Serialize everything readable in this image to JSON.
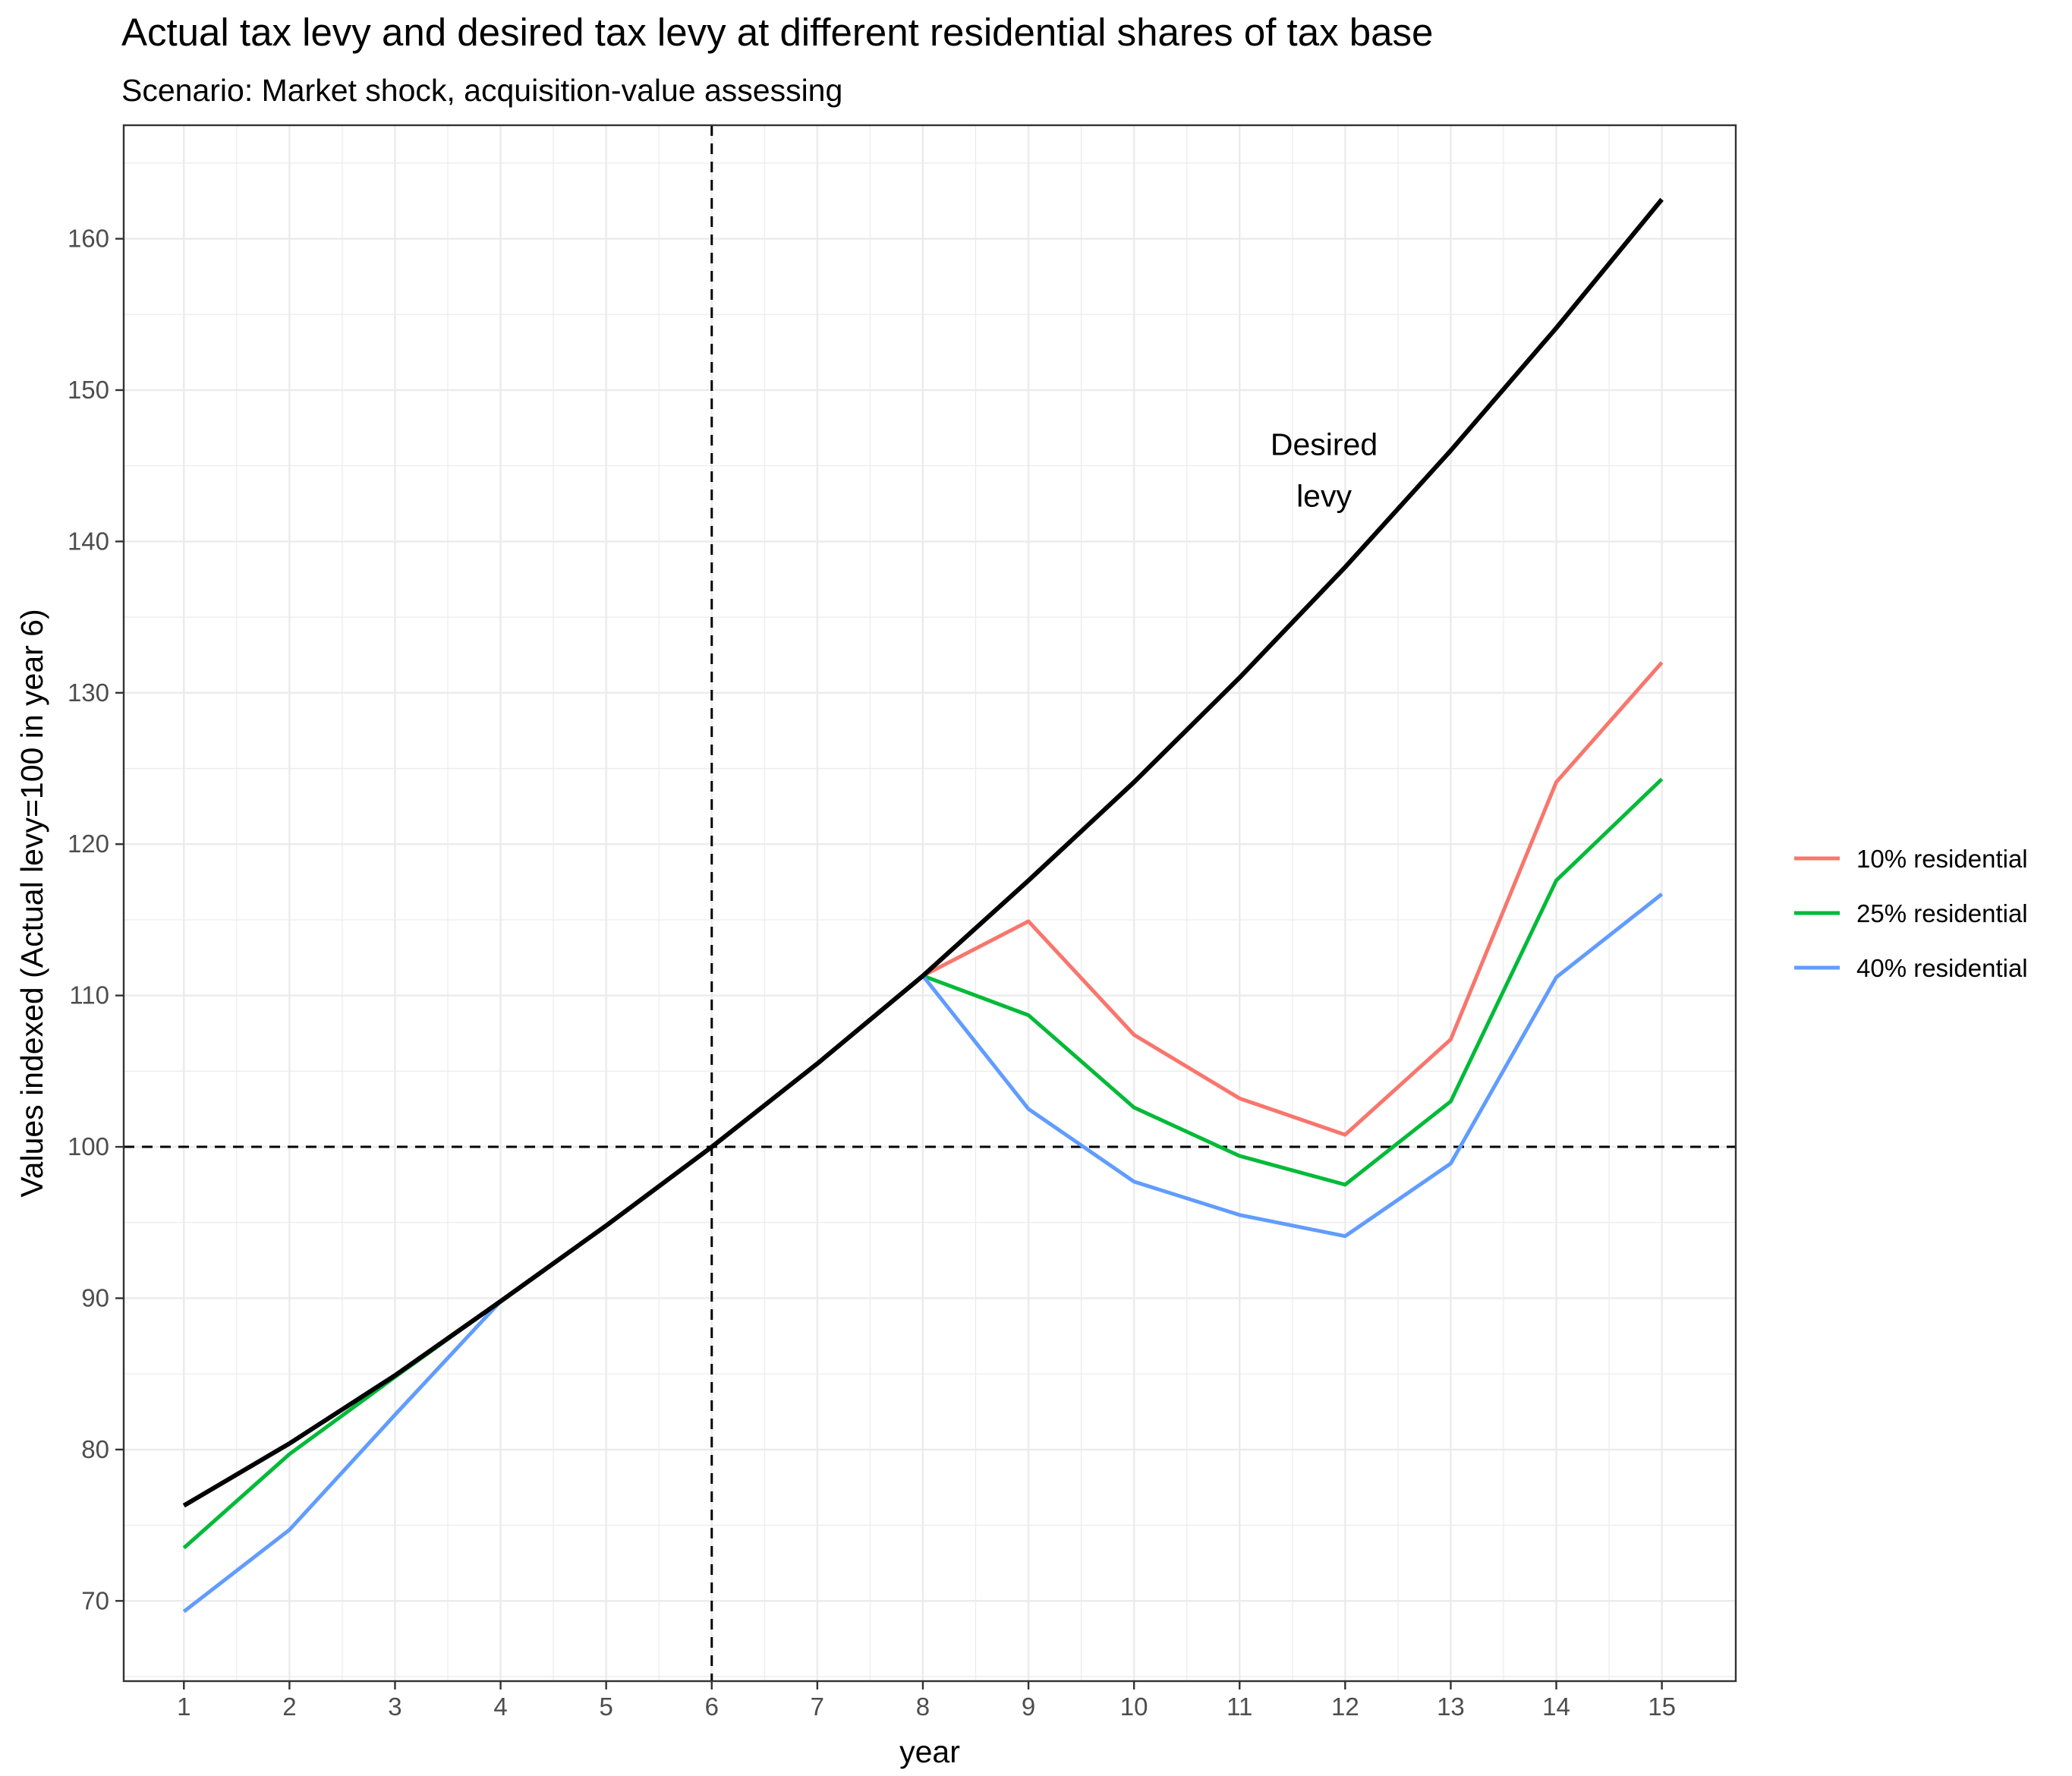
{
  "chart_data": {
    "type": "line",
    "title": "Actual tax levy and desired tax levy at different residential shares of tax base",
    "subtitle": "Scenario: Market shock, acquisition-value assessing",
    "xlabel": "year",
    "ylabel": "Values indexed (Actual levy=100 in year 6)",
    "x_ticks": [
      1,
      2,
      3,
      4,
      5,
      6,
      7,
      8,
      9,
      10,
      11,
      12,
      13,
      14,
      15
    ],
    "y_ticks": [
      70,
      80,
      90,
      100,
      110,
      120,
      130,
      140,
      150,
      160
    ],
    "xlim": [
      0.43,
      15.7
    ],
    "ylim": [
      64.7,
      167.5
    ],
    "grid": true,
    "legend_position": "right",
    "reference_lines": [
      {
        "orientation": "vertical",
        "value": 6,
        "style": "dashed"
      },
      {
        "orientation": "horizontal",
        "value": 100,
        "style": "dashed"
      }
    ],
    "annotations": [
      {
        "lines": [
          "Desired",
          "levy"
        ],
        "x": 11.8,
        "y": 144.7
      }
    ],
    "series": [
      {
        "name": "",
        "label": "Desired levy",
        "color": "#000000",
        "x": [
          1,
          2,
          3,
          4,
          5,
          6,
          7,
          8,
          9,
          10,
          11,
          12,
          13,
          14,
          15
        ],
        "values": [
          76.3,
          80.4,
          84.9,
          89.8,
          94.8,
          100.0,
          105.5,
          111.3,
          117.6,
          124.1,
          131.0,
          138.3,
          146.0,
          154.1,
          162.6
        ]
      },
      {
        "name": "10% residential",
        "color": "#f8766d",
        "x": [
          8,
          9,
          10,
          11,
          12,
          13,
          14,
          15
        ],
        "values": [
          111.3,
          114.9,
          107.4,
          103.2,
          100.8,
          107.1,
          124.1,
          132.0
        ]
      },
      {
        "name": "25% residential",
        "color": "#00ba38",
        "x": [
          1,
          2,
          3,
          4,
          5,
          6,
          7,
          8,
          9,
          10,
          11,
          12,
          13,
          14,
          15
        ],
        "values": [
          73.5,
          79.7,
          84.8,
          89.8,
          94.8,
          100.0,
          105.5,
          111.3,
          108.7,
          102.6,
          99.4,
          97.5,
          103.0,
          117.6,
          124.3
        ]
      },
      {
        "name": "40% residential",
        "color": "#619cff",
        "x": [
          1,
          2,
          3,
          4,
          5,
          6,
          7,
          8,
          9,
          10,
          11,
          12,
          13,
          14,
          15
        ],
        "values": [
          69.3,
          74.7,
          82.3,
          89.8,
          94.8,
          100.0,
          105.5,
          111.3,
          102.5,
          97.7,
          95.5,
          94.1,
          98.9,
          111.2,
          116.7
        ]
      }
    ]
  }
}
